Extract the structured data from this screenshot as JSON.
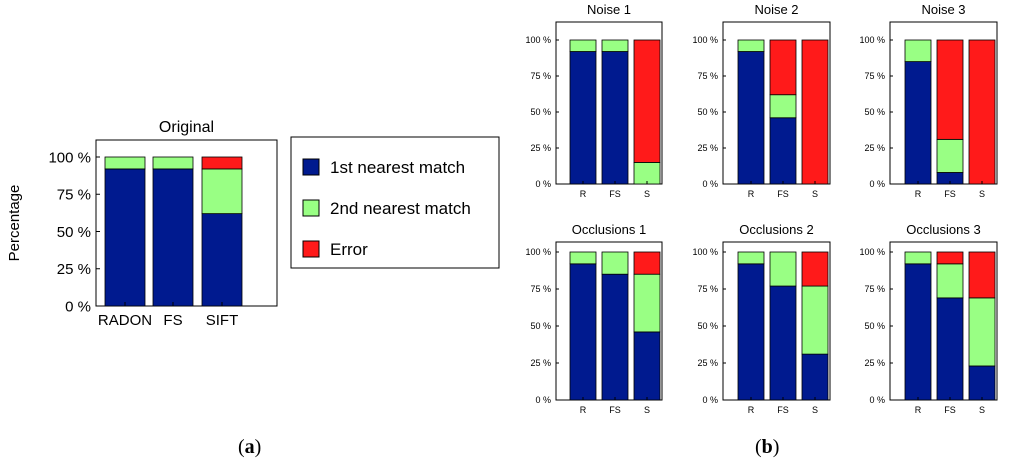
{
  "colors": {
    "first": "#001A8F",
    "second": "#99FF84",
    "error": "#FF1A1A"
  },
  "legend": {
    "items": [
      {
        "label": "1st nearest match",
        "color": "#001A8F"
      },
      {
        "label": "2nd nearest match",
        "color": "#99FF84"
      },
      {
        "label": "Error",
        "color": "#FF1A1A"
      }
    ]
  },
  "captions": {
    "a": "a",
    "b": "b"
  },
  "chart_data": [
    {
      "type": "bar",
      "stacked": true,
      "title": "Original",
      "ylabel": "Percentage",
      "ylim": [
        0,
        100
      ],
      "yticks": [
        "0 %",
        "25 %",
        "50 %",
        "75 %",
        "100 %"
      ],
      "categories": [
        "RADON",
        "FS",
        "SIFT"
      ],
      "series": [
        {
          "name": "1st nearest match",
          "values": [
            92,
            92,
            62
          ]
        },
        {
          "name": "2nd nearest match",
          "values": [
            8,
            8,
            30
          ]
        },
        {
          "name": "Error",
          "values": [
            0,
            0,
            8
          ]
        }
      ]
    },
    {
      "type": "bar",
      "stacked": true,
      "title": "Noise 1",
      "ylim": [
        0,
        100
      ],
      "yticks": [
        "0 %",
        "25 %",
        "50 %",
        "75 %",
        "100 %"
      ],
      "categories": [
        "R",
        "FS",
        "S"
      ],
      "series": [
        {
          "name": "1st nearest match",
          "values": [
            92,
            92,
            0
          ]
        },
        {
          "name": "2nd nearest match",
          "values": [
            8,
            8,
            15
          ]
        },
        {
          "name": "Error",
          "values": [
            0,
            0,
            85
          ]
        }
      ]
    },
    {
      "type": "bar",
      "stacked": true,
      "title": "Noise 2",
      "ylim": [
        0,
        100
      ],
      "yticks": [
        "0 %",
        "25 %",
        "50 %",
        "75 %",
        "100 %"
      ],
      "categories": [
        "R",
        "FS",
        "S"
      ],
      "series": [
        {
          "name": "1st nearest match",
          "values": [
            92,
            46,
            0
          ]
        },
        {
          "name": "2nd nearest match",
          "values": [
            8,
            16,
            0
          ]
        },
        {
          "name": "Error",
          "values": [
            0,
            38,
            100
          ]
        }
      ]
    },
    {
      "type": "bar",
      "stacked": true,
      "title": "Noise 3",
      "ylim": [
        0,
        100
      ],
      "yticks": [
        "0 %",
        "25 %",
        "50 %",
        "75 %",
        "100 %"
      ],
      "categories": [
        "R",
        "FS",
        "S"
      ],
      "series": [
        {
          "name": "1st nearest match",
          "values": [
            85,
            8,
            0
          ]
        },
        {
          "name": "2nd nearest match",
          "values": [
            15,
            23,
            0
          ]
        },
        {
          "name": "Error",
          "values": [
            0,
            69,
            100
          ]
        }
      ]
    },
    {
      "type": "bar",
      "stacked": true,
      "title": "Occlusions 1",
      "ylim": [
        0,
        100
      ],
      "yticks": [
        "0 %",
        "25 %",
        "50 %",
        "75 %",
        "100 %"
      ],
      "categories": [
        "R",
        "FS",
        "S"
      ],
      "series": [
        {
          "name": "1st nearest match",
          "values": [
            92,
            85,
            46
          ]
        },
        {
          "name": "2nd nearest match",
          "values": [
            8,
            15,
            39
          ]
        },
        {
          "name": "Error",
          "values": [
            0,
            0,
            15
          ]
        }
      ]
    },
    {
      "type": "bar",
      "stacked": true,
      "title": "Occlusions 2",
      "ylim": [
        0,
        100
      ],
      "yticks": [
        "0 %",
        "25 %",
        "50 %",
        "75 %",
        "100 %"
      ],
      "categories": [
        "R",
        "FS",
        "S"
      ],
      "series": [
        {
          "name": "1st nearest match",
          "values": [
            92,
            77,
            31
          ]
        },
        {
          "name": "2nd nearest match",
          "values": [
            8,
            23,
            46
          ]
        },
        {
          "name": "Error",
          "values": [
            0,
            0,
            23
          ]
        }
      ]
    },
    {
      "type": "bar",
      "stacked": true,
      "title": "Occlusions 3",
      "ylim": [
        0,
        100
      ],
      "yticks": [
        "0 %",
        "25 %",
        "50 %",
        "75 %",
        "100 %"
      ],
      "categories": [
        "R",
        "FS",
        "S"
      ],
      "series": [
        {
          "name": "1st nearest match",
          "values": [
            92,
            69,
            23
          ]
        },
        {
          "name": "2nd nearest match",
          "values": [
            8,
            23,
            46
          ]
        },
        {
          "name": "Error",
          "values": [
            0,
            8,
            31
          ]
        }
      ]
    }
  ]
}
